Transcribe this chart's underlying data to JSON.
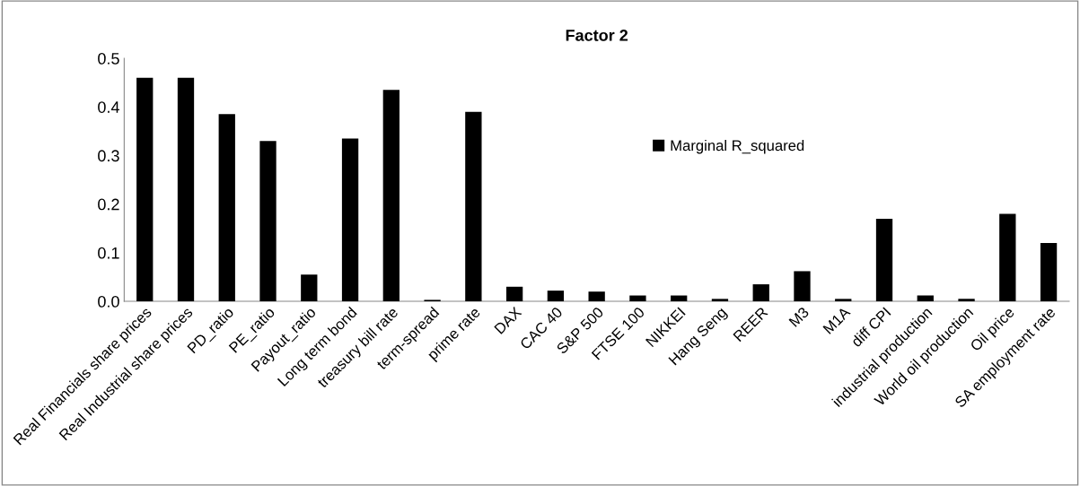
{
  "chart_data": {
    "type": "bar",
    "title": "Factor 2",
    "categories": [
      "Real Financials share prices",
      "Real Industrial share prices",
      "PD_ratio",
      "PE_ratio",
      "Payout_ratio",
      "Long term bond",
      "treasury bill rate",
      "term-spread",
      "prime rate",
      "DAX",
      "CAC 40",
      "S&P 500",
      "FTSE 100",
      "NIKKEI",
      "Hang Seng",
      "REER",
      "M3",
      "M1A",
      "diff CPI",
      "industrial production",
      "World oil production",
      "Oil price",
      "SA employment rate"
    ],
    "series": [
      {
        "name": "Marginal R_squared",
        "color": "#000000",
        "values": [
          0.46,
          0.46,
          0.385,
          0.33,
          0.055,
          0.335,
          0.435,
          0.003,
          0.39,
          0.03,
          0.022,
          0.02,
          0.012,
          0.012,
          0.005,
          0.035,
          0.062,
          0.005,
          0.17,
          0.012,
          0.005,
          0.18,
          0.12
        ]
      }
    ],
    "ylim": [
      0,
      0.5
    ],
    "yticks": [
      {
        "value": 0,
        "label": "0.0"
      },
      0.1,
      0.2,
      0.3,
      0.4,
      0.5
    ],
    "legend": "top",
    "grid": false
  }
}
